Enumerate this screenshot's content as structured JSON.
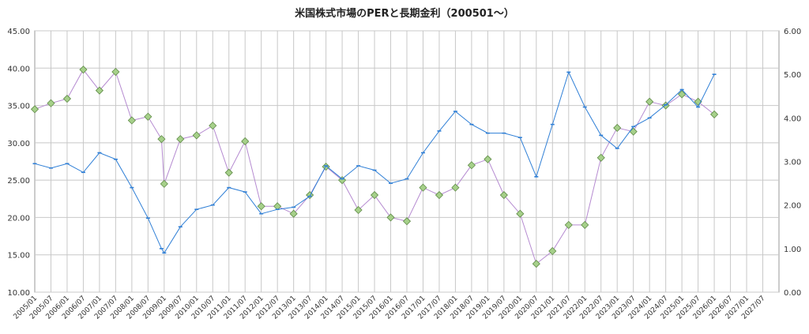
{
  "chart_data": {
    "type": "line",
    "title": "米国株式市場のPERと長期金利（200501～）",
    "x_ticks": [
      "2005/01",
      "2005/07",
      "2006/01",
      "2006/07",
      "2007/01",
      "2007/07",
      "2008/01",
      "2008/07",
      "2009/01",
      "2009/07",
      "2010/01",
      "2010/07",
      "2011/01",
      "2011/07",
      "2012/01",
      "2012/07",
      "2013/01",
      "2013/07",
      "2014/01",
      "2014/07",
      "2015/01",
      "2015/07",
      "2016/01",
      "2016/07",
      "2017/01",
      "2017/07",
      "2018/01",
      "2018/07",
      "2019/01",
      "2019/07",
      "2020/01",
      "2020/07",
      "2021/01",
      "2021/07",
      "2022/01",
      "2022/07",
      "2023/01",
      "2023/07",
      "2024/01",
      "2024/07",
      "2025/01",
      "2025/07",
      "2026/01",
      "2026/07",
      "2027/01",
      "2027/07"
    ],
    "y_left": {
      "min": 10,
      "max": 45,
      "ticks": [
        "10.00",
        "15.00",
        "20.00",
        "25.00",
        "30.00",
        "35.00",
        "40.00",
        "45.00"
      ]
    },
    "y_right": {
      "min": 0,
      "max": 6,
      "ticks": [
        "0.00",
        "1.00",
        "2.00",
        "3.00",
        "4.00",
        "5.00",
        "6.00"
      ]
    },
    "grid": true,
    "series": [
      {
        "axis": "left",
        "color": "#a6d08a",
        "line_color": "#b58ad0",
        "marker": "diamond",
        "points": [
          [
            "2005/01",
            34.5
          ],
          [
            "2005/07",
            35.3
          ],
          [
            "2006/01",
            35.9
          ],
          [
            "2006/07",
            39.8
          ],
          [
            "2007/01",
            37.0
          ],
          [
            "2007/07",
            39.5
          ],
          [
            "2008/01",
            33.0
          ],
          [
            "2008/07",
            33.5
          ],
          [
            "2008/12",
            30.5
          ],
          [
            "2009/01",
            24.5
          ],
          [
            "2009/07",
            30.5
          ],
          [
            "2010/01",
            31.0
          ],
          [
            "2010/07",
            32.3
          ],
          [
            "2011/01",
            26.0
          ],
          [
            "2011/07",
            30.2
          ],
          [
            "2012/01",
            21.5
          ],
          [
            "2012/07",
            21.5
          ],
          [
            "2013/01",
            20.5
          ],
          [
            "2013/07",
            23.0
          ],
          [
            "2014/01",
            26.8
          ],
          [
            "2014/07",
            25.0
          ],
          [
            "2015/01",
            21.0
          ],
          [
            "2015/07",
            23.0
          ],
          [
            "2016/01",
            20.0
          ],
          [
            "2016/07",
            19.5
          ],
          [
            "2017/01",
            24.0
          ],
          [
            "2017/07",
            23.0
          ],
          [
            "2018/01",
            24.0
          ],
          [
            "2018/07",
            27.0
          ],
          [
            "2019/01",
            27.8
          ],
          [
            "2019/07",
            23.0
          ],
          [
            "2020/01",
            20.5
          ],
          [
            "2020/07",
            13.8
          ],
          [
            "2021/01",
            15.5
          ],
          [
            "2021/07",
            19.0
          ],
          [
            "2022/01",
            19.0
          ],
          [
            "2022/07",
            28.0
          ],
          [
            "2023/01",
            32.0
          ],
          [
            "2023/07",
            31.5
          ],
          [
            "2024/01",
            35.5
          ],
          [
            "2024/07",
            35.0
          ],
          [
            "2025/01",
            36.5
          ],
          [
            "2025/07",
            35.5
          ],
          [
            "2026/01",
            33.8
          ]
        ]
      },
      {
        "axis": "right",
        "color": "#2f7fd6",
        "marker": "dash",
        "points": [
          [
            "2005/01",
            2.95
          ],
          [
            "2005/07",
            2.85
          ],
          [
            "2006/01",
            2.95
          ],
          [
            "2006/07",
            2.75
          ],
          [
            "2007/01",
            3.2
          ],
          [
            "2007/07",
            3.05
          ],
          [
            "2008/01",
            2.4
          ],
          [
            "2008/07",
            1.7
          ],
          [
            "2008/12",
            1.0
          ],
          [
            "2009/01",
            0.9
          ],
          [
            "2009/07",
            1.5
          ],
          [
            "2010/01",
            1.9
          ],
          [
            "2010/07",
            2.0
          ],
          [
            "2011/01",
            2.4
          ],
          [
            "2011/07",
            2.3
          ],
          [
            "2012/01",
            1.8
          ],
          [
            "2012/07",
            1.9
          ],
          [
            "2013/01",
            1.95
          ],
          [
            "2013/07",
            2.2
          ],
          [
            "2014/01",
            2.9
          ],
          [
            "2014/07",
            2.6
          ],
          [
            "2015/01",
            2.9
          ],
          [
            "2015/07",
            2.8
          ],
          [
            "2016/01",
            2.5
          ],
          [
            "2016/07",
            2.6
          ],
          [
            "2017/01",
            3.2
          ],
          [
            "2017/07",
            3.7
          ],
          [
            "2018/01",
            4.15
          ],
          [
            "2018/07",
            3.85
          ],
          [
            "2019/01",
            3.65
          ],
          [
            "2019/07",
            3.65
          ],
          [
            "2020/01",
            3.55
          ],
          [
            "2020/07",
            2.65
          ],
          [
            "2021/01",
            3.85
          ],
          [
            "2021/07",
            5.05
          ],
          [
            "2022/01",
            4.25
          ],
          [
            "2022/07",
            3.6
          ],
          [
            "2023/01",
            3.3
          ],
          [
            "2023/07",
            3.8
          ],
          [
            "2024/01",
            4.0
          ],
          [
            "2024/07",
            4.3
          ],
          [
            "2025/01",
            4.65
          ],
          [
            "2025/07",
            4.25
          ],
          [
            "2026/01",
            5.0
          ]
        ]
      }
    ]
  }
}
